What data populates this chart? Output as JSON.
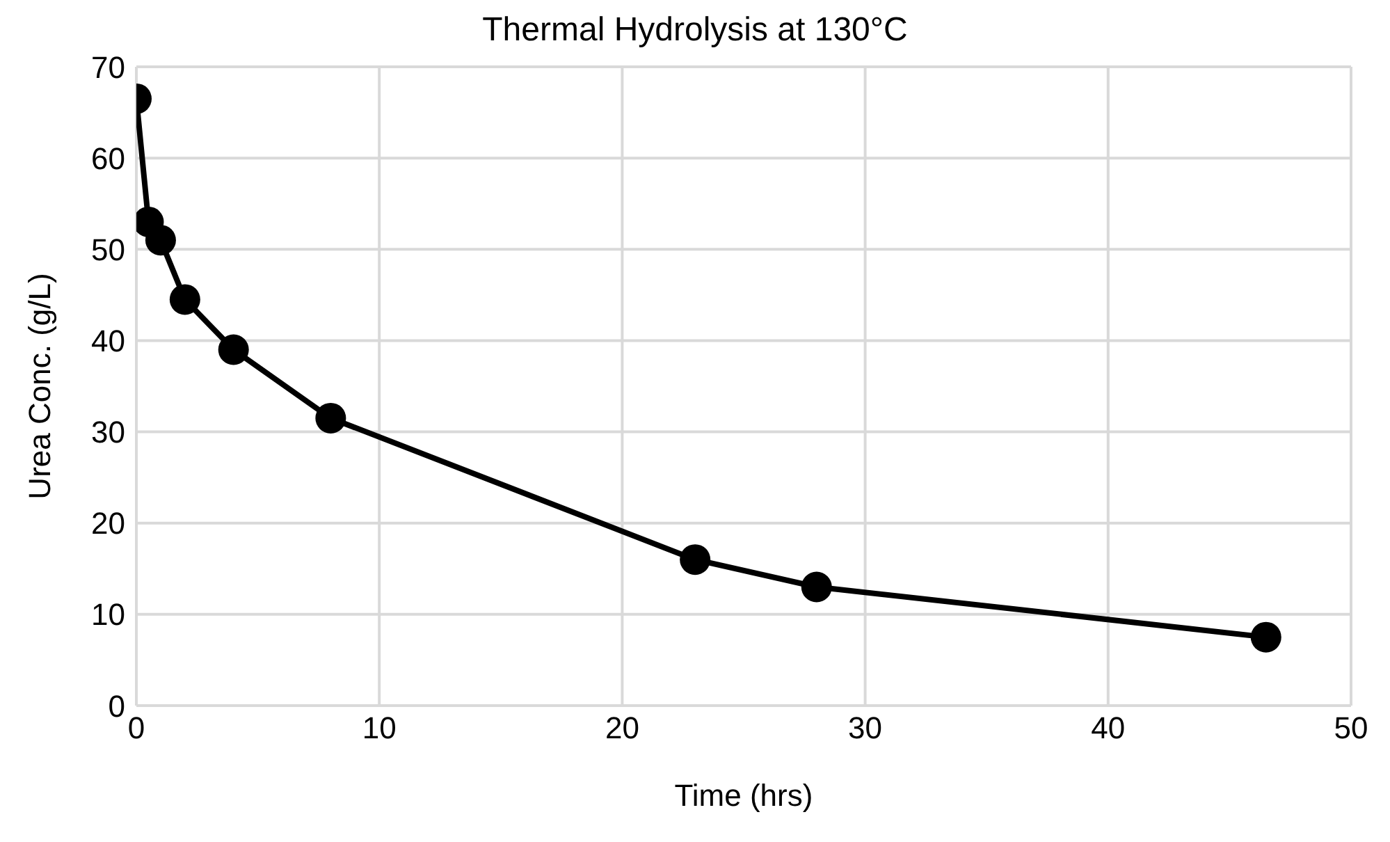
{
  "chart_data": {
    "type": "line",
    "title": "Thermal Hydrolysis at 130°C",
    "xlabel": "Time (hrs)",
    "ylabel": "Urea Conc. (g/L)",
    "x": [
      0,
      0.5,
      1,
      2,
      4,
      8,
      23,
      28,
      46.5
    ],
    "series": [
      {
        "color": "#000000",
        "values": [
          66.5,
          53,
          51,
          44.5,
          39,
          31.5,
          16,
          13,
          7.5
        ]
      }
    ],
    "xlim": [
      0,
      50
    ],
    "xticks": [
      0,
      10,
      20,
      30,
      40,
      50
    ],
    "ylim": [
      0,
      70
    ],
    "yticks": [
      0,
      10,
      20,
      30,
      40,
      50,
      60,
      70
    ],
    "grid": true,
    "marker": "circle",
    "line_style": "solid",
    "legend": false
  }
}
